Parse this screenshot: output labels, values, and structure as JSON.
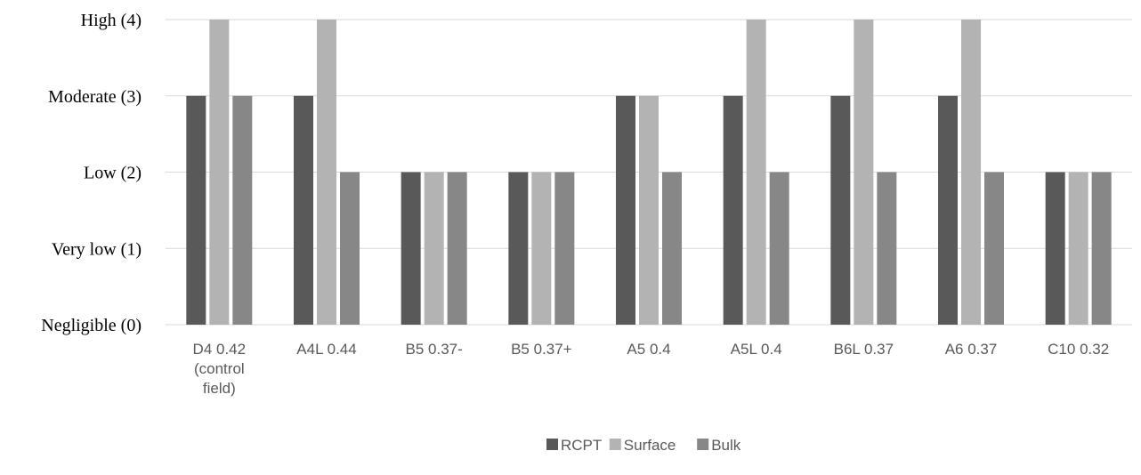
{
  "chart_data": {
    "type": "bar",
    "title": "",
    "xlabel": "",
    "ylabel": "",
    "ylim": [
      0,
      4
    ],
    "grid": true,
    "legend_position": "bottom",
    "y_ticks": [
      {
        "value": 0,
        "label": "Negligible  (0)"
      },
      {
        "value": 1,
        "label": "Very  low (1)"
      },
      {
        "value": 2,
        "label": "Low  (2)"
      },
      {
        "value": 3,
        "label": "Moderate (3)"
      },
      {
        "value": 4,
        "label": "High  (4)"
      }
    ],
    "categories": [
      [
        "D4 0.42",
        "(control",
        "field)"
      ],
      [
        "A4L 0.44"
      ],
      [
        "B5 0.37-"
      ],
      [
        "B5 0.37+"
      ],
      [
        "A5 0.4"
      ],
      [
        "A5L 0.4"
      ],
      [
        "B6L 0.37"
      ],
      [
        "A6 0.37"
      ],
      [
        "C10 0.32"
      ]
    ],
    "series": [
      {
        "name": "RCPT",
        "color": "#595959",
        "values": [
          3,
          3,
          2,
          2,
          3,
          3,
          3,
          3,
          2
        ]
      },
      {
        "name": "Surface",
        "color": "#b3b3b3",
        "values": [
          4,
          4,
          2,
          2,
          3,
          4,
          4,
          4,
          2
        ]
      },
      {
        "name": "Bulk",
        "color": "#878787",
        "values": [
          3,
          2,
          2,
          2,
          2,
          2,
          2,
          2,
          2
        ]
      }
    ]
  }
}
